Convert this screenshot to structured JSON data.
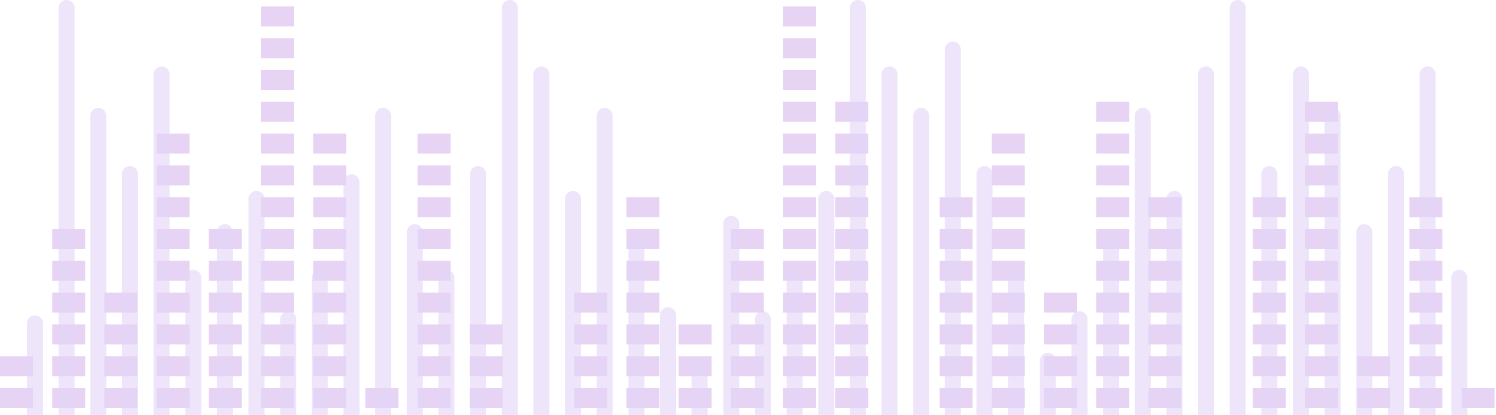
{
  "colors": {
    "background": "#ffffff",
    "capsule": "#e2d3f6",
    "capsule_opacity": 0.6,
    "segment": "#d7b8ee",
    "segment_opacity": 0.6
  },
  "equalizer": {
    "segment_columns": [
      {
        "level": 2
      },
      {
        "level": 6
      },
      {
        "level": 4
      },
      {
        "level": 9
      },
      {
        "level": 6
      },
      {
        "level": 13
      },
      {
        "level": 9
      },
      {
        "level": 1
      },
      {
        "level": 9
      },
      {
        "level": 3
      },
      {
        "level": 0
      },
      {
        "level": 4
      },
      {
        "level": 7
      },
      {
        "level": 3
      },
      {
        "level": 6
      },
      {
        "level": 13
      },
      {
        "level": 10
      },
      {
        "level": 0
      },
      {
        "level": 7
      },
      {
        "level": 9
      },
      {
        "level": 4
      },
      {
        "level": 10
      },
      {
        "level": 7
      },
      {
        "level": 0
      },
      {
        "level": 7
      },
      {
        "level": 10
      },
      {
        "level": 2
      },
      {
        "level": 7
      },
      {
        "level": 1
      }
    ],
    "capsule_bars": [
      {
        "level": 0.24
      },
      {
        "level": 1.0
      },
      {
        "level": 0.74
      },
      {
        "level": 0.6
      },
      {
        "level": 0.84
      },
      {
        "level": 0.35
      },
      {
        "level": 0.46
      },
      {
        "level": 0.54
      },
      {
        "level": 0.25
      },
      {
        "level": 0.35
      },
      {
        "level": 0.58
      },
      {
        "level": 0.74
      },
      {
        "level": 0.46
      },
      {
        "level": 0.35
      },
      {
        "level": 0.6
      },
      {
        "level": 1.0
      },
      {
        "level": 0.84
      },
      {
        "level": 0.54
      },
      {
        "level": 0.74
      },
      {
        "level": 0.44
      },
      {
        "level": 0.26
      },
      {
        "level": 0.14
      },
      {
        "level": 0.48
      },
      {
        "level": 0.25
      },
      {
        "level": 0.35
      },
      {
        "level": 0.54
      },
      {
        "level": 1.0
      },
      {
        "level": 0.84
      },
      {
        "level": 0.74
      },
      {
        "level": 0.9
      },
      {
        "level": 0.6
      },
      {
        "level": 0.35
      },
      {
        "level": 0.15
      },
      {
        "level": 0.25
      },
      {
        "level": 0.44
      },
      {
        "level": 0.74
      },
      {
        "level": 0.54
      },
      {
        "level": 0.84
      },
      {
        "level": 1.0
      },
      {
        "level": 0.6
      },
      {
        "level": 0.84
      },
      {
        "level": 0.74
      },
      {
        "level": 0.46
      },
      {
        "level": 0.6
      },
      {
        "level": 0.84
      },
      {
        "level": 0.35
      }
    ]
  }
}
